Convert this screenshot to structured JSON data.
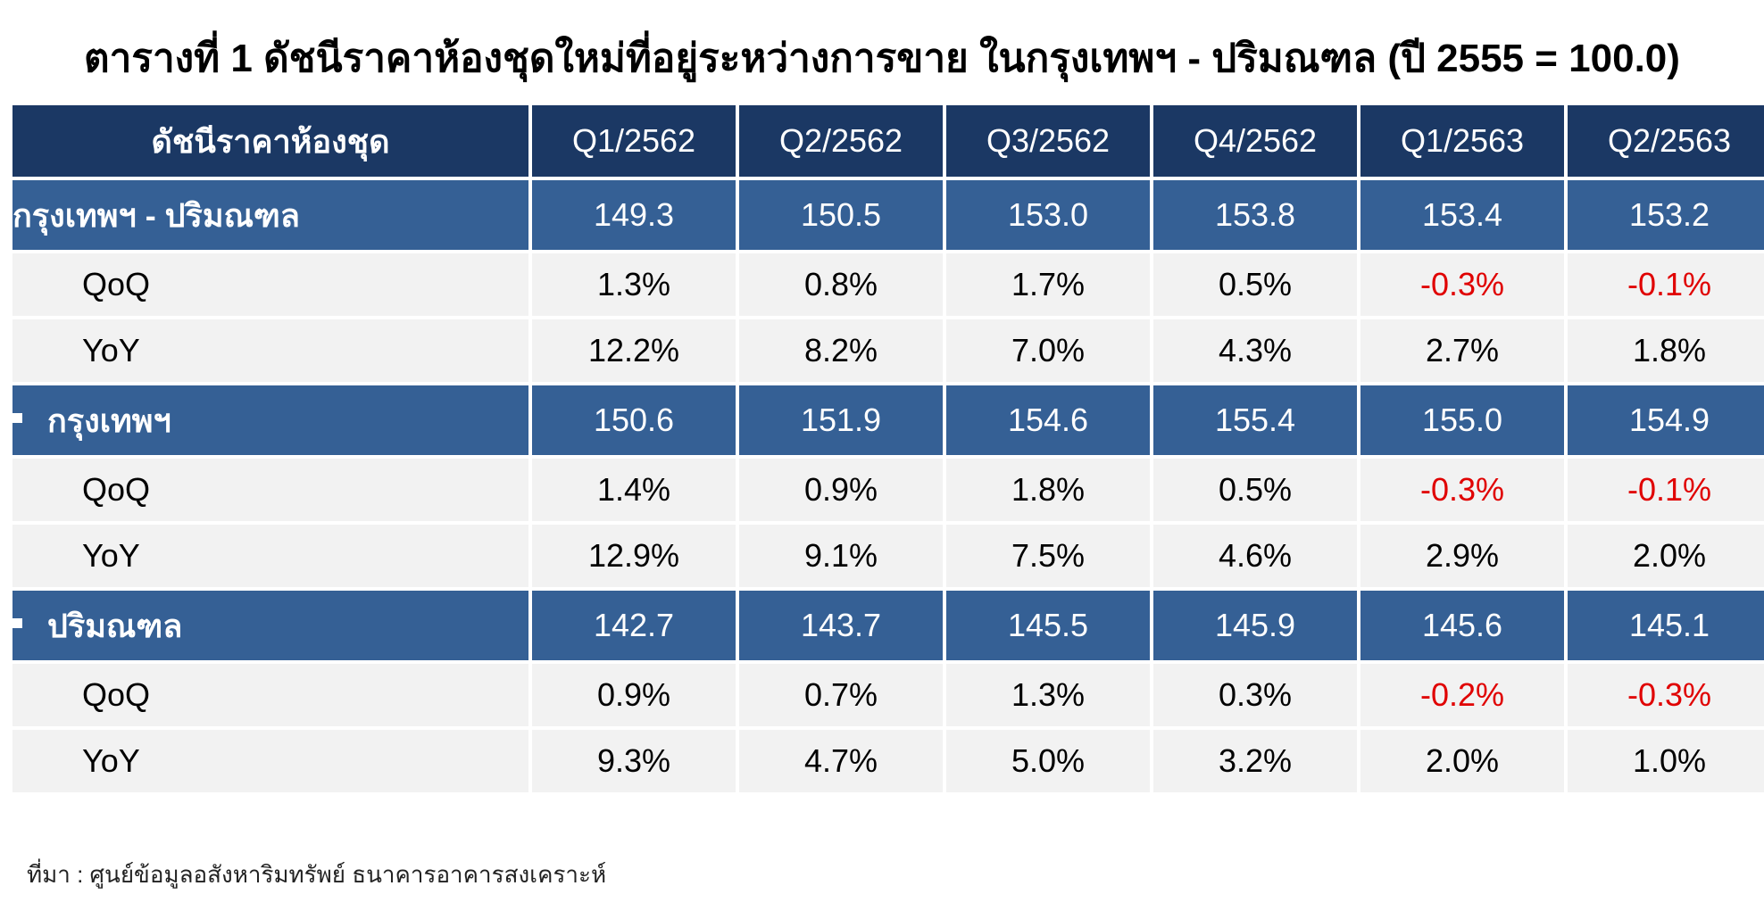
{
  "title": "ตารางที่ 1 ดัชนีราคาห้องชุดใหม่ที่อยู่ระหว่างการขาย ในกรุงเทพฯ - ปริมณฑล (ปี 2555 = 100.0)",
  "source": "ที่มา : ศูนย์ข้อมูลอสังหาริมทรัพย์ ธนาคารอาคารสงเคราะห์",
  "colors": {
    "header_bg": "#1b3864",
    "index_row_bg": "#356095",
    "stat_row_bg": "#f2f2f2",
    "negative_text": "#e00000"
  },
  "chart_data": {
    "type": "table",
    "title": "ตารางที่ 1 ดัชนีราคาห้องชุดใหม่ที่อยู่ระหว่างการขาย ในกรุงเทพฯ - ปริมณฑล (ปี 2555 = 100.0)",
    "columns": [
      "ดัชนีราคาห้องชุด",
      "Q1/2562",
      "Q2/2562",
      "Q3/2562",
      "Q4/2562",
      "Q1/2563",
      "Q2/2563"
    ],
    "rows": [
      {
        "label": "กรุงเทพฯ - ปริมณฑล",
        "kind": "index",
        "bullet": false,
        "values": [
          "149.3",
          "150.5",
          "153.0",
          "153.8",
          "153.4",
          "153.2"
        ]
      },
      {
        "label": "QoQ",
        "kind": "stat",
        "values": [
          "1.3%",
          "0.8%",
          "1.7%",
          "0.5%",
          "-0.3%",
          "-0.1%"
        ]
      },
      {
        "label": "YoY",
        "kind": "stat",
        "values": [
          "12.2%",
          "8.2%",
          "7.0%",
          "4.3%",
          "2.7%",
          "1.8%"
        ]
      },
      {
        "label": "กรุงเทพฯ",
        "kind": "index",
        "bullet": true,
        "values": [
          "150.6",
          "151.9",
          "154.6",
          "155.4",
          "155.0",
          "154.9"
        ]
      },
      {
        "label": "QoQ",
        "kind": "stat",
        "values": [
          "1.4%",
          "0.9%",
          "1.8%",
          "0.5%",
          "-0.3%",
          "-0.1%"
        ]
      },
      {
        "label": "YoY",
        "kind": "stat",
        "values": [
          "12.9%",
          "9.1%",
          "7.5%",
          "4.6%",
          "2.9%",
          "2.0%"
        ]
      },
      {
        "label": "ปริมณฑล",
        "kind": "index",
        "bullet": true,
        "values": [
          "142.7",
          "143.7",
          "145.5",
          "145.9",
          "145.6",
          "145.1"
        ]
      },
      {
        "label": "QoQ",
        "kind": "stat",
        "values": [
          "0.9%",
          "0.7%",
          "1.3%",
          "0.3%",
          "-0.2%",
          "-0.3%"
        ]
      },
      {
        "label": "YoY",
        "kind": "stat",
        "values": [
          "9.3%",
          "4.7%",
          "5.0%",
          "3.2%",
          "2.0%",
          "1.0%"
        ]
      }
    ]
  }
}
